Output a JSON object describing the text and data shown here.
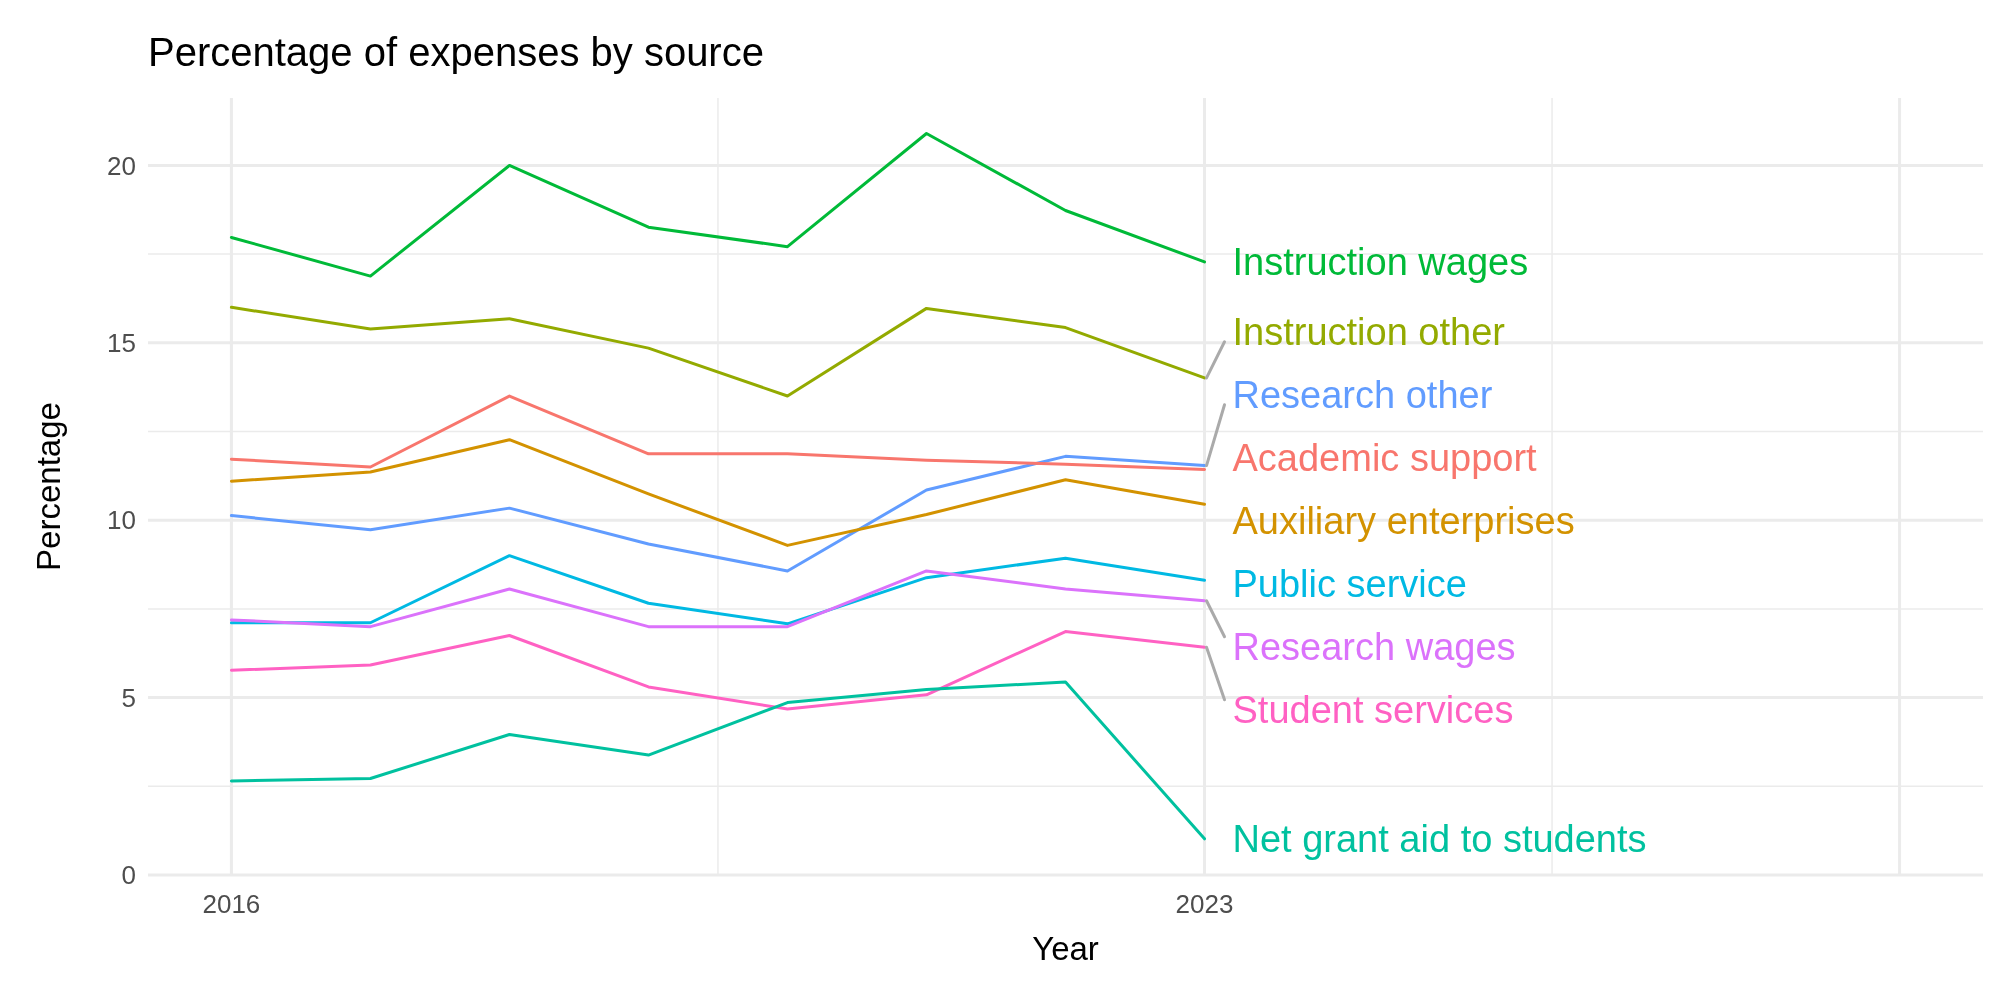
{
  "chart_data": {
    "type": "line",
    "title": "Percentage of expenses by source",
    "xlabel": "Year",
    "ylabel": "Percentage",
    "x": [
      2016,
      2017,
      2018,
      2019,
      2020,
      2021,
      2022,
      2023
    ],
    "xlim": [
      2015.4,
      2028.6
    ],
    "xticks": [
      2016,
      2023,
      {
        "value": 2028,
        "label": null
      }
    ],
    "ylim": [
      0,
      21.9
    ],
    "yticks": [
      0,
      5,
      10,
      15,
      20
    ],
    "grid": true,
    "series": [
      {
        "name": "Instruction wages",
        "color": "#00ba38",
        "values": [
          17.97,
          16.88,
          20.0,
          18.26,
          17.71,
          20.9,
          18.73,
          17.28
        ]
      },
      {
        "name": "Instruction other",
        "color": "#93aa00",
        "values": [
          16.0,
          15.39,
          15.68,
          14.85,
          13.5,
          15.97,
          15.43,
          14.01
        ]
      },
      {
        "name": "Research other",
        "color": "#619cff",
        "values": [
          10.13,
          9.73,
          10.34,
          9.33,
          8.57,
          10.85,
          11.8,
          11.54
        ]
      },
      {
        "name": "Academic support",
        "color": "#f8766d",
        "values": [
          11.72,
          11.5,
          13.5,
          11.87,
          11.87,
          11.69,
          11.58,
          11.43
        ]
      },
      {
        "name": "Auxiliary enterprises",
        "color": "#d39200",
        "values": [
          11.1,
          11.36,
          12.27,
          10.74,
          9.29,
          10.16,
          11.14,
          10.45
        ]
      },
      {
        "name": "Public service",
        "color": "#00b9e3",
        "values": [
          7.11,
          7.11,
          9.0,
          7.66,
          7.08,
          8.38,
          8.93,
          8.31
        ]
      },
      {
        "name": "Research wages",
        "color": "#db72fb",
        "values": [
          7.19,
          7.0,
          8.06,
          7.0,
          7.0,
          8.57,
          8.06,
          7.73
        ]
      },
      {
        "name": "Student services",
        "color": "#ff61c3",
        "values": [
          5.77,
          5.92,
          6.75,
          5.3,
          4.68,
          5.08,
          6.86,
          6.42
        ]
      },
      {
        "name": "Net grant aid to students",
        "color": "#00c19f",
        "values": [
          2.65,
          2.72,
          3.96,
          3.38,
          4.86,
          5.23,
          5.44,
          1.02
        ]
      }
    ]
  }
}
